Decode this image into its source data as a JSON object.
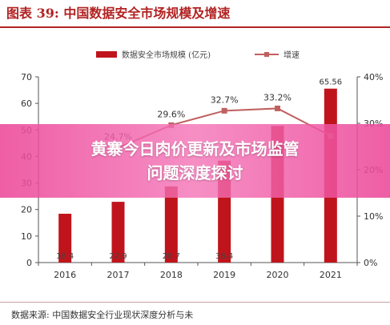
{
  "header": {
    "title": "图表 39:  中国数据安全市场规模及增速"
  },
  "banner": {
    "line1": "黄寨今日肉价更新及市场监管",
    "line2": "问题深度探讨"
  },
  "footer": {
    "source": "数据来源: 中国数据安全行业现状深度分析与未"
  },
  "colors": {
    "bar": "#c0141c",
    "line": "#c06060",
    "accent": "#b22222"
  },
  "chart_data": {
    "type": "bar",
    "categories": [
      "2016",
      "2017",
      "2018",
      "2019",
      "2020",
      "2021"
    ],
    "series": [
      {
        "name": "数据安全市场规模 (亿元)",
        "type": "bar",
        "axis": "left",
        "values": [
          18.4,
          22.9,
          28.7,
          38.4,
          51.5,
          65.56
        ],
        "labels": [
          "18.4",
          "22.9",
          "28.7",
          "38.4",
          "",
          "65.56"
        ]
      },
      {
        "name": "增速",
        "type": "line",
        "axis": "right",
        "values": [
          null,
          24.7,
          29.6,
          32.7,
          33.2,
          27.3
        ],
        "labels": [
          "",
          "24.7%",
          "29.6%",
          "32.7%",
          "33.2%",
          ""
        ]
      }
    ],
    "yleft": {
      "min": 0,
      "max": 70,
      "ticks": [
        0,
        10,
        20,
        30,
        40,
        50,
        60,
        70
      ]
    },
    "yright": {
      "min": 0,
      "max": 40,
      "ticks": [
        "0%",
        "10%",
        "20%",
        "30%",
        "40%"
      ]
    },
    "legend": "top-center",
    "grid": false
  }
}
